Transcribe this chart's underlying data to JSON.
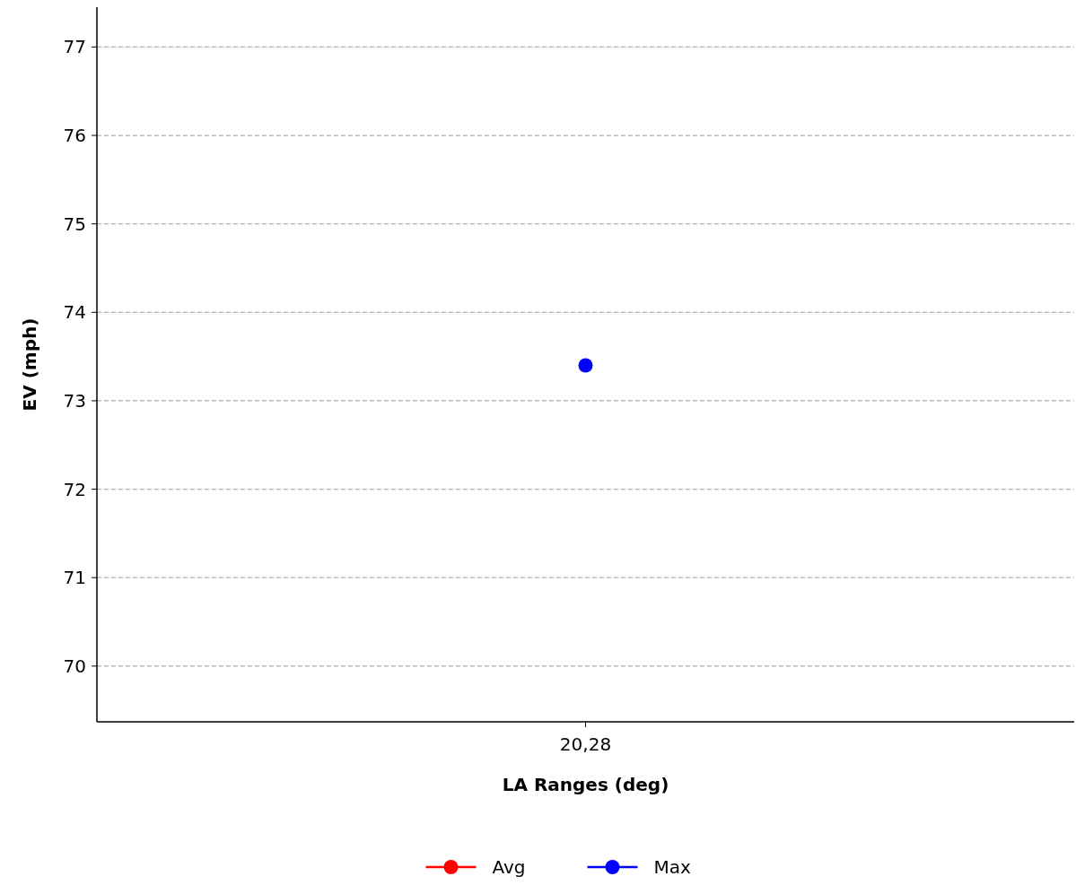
{
  "chart_data": {
    "type": "line",
    "xlabel": "LA Ranges (deg)",
    "ylabel": "EV (mph)",
    "categories": [
      "20,28"
    ],
    "series": [
      {
        "name": "Avg",
        "color": "#ff0000",
        "values": [
          null
        ]
      },
      {
        "name": "Max",
        "color": "#0000ff",
        "values": [
          73.4
        ]
      }
    ],
    "ylim": [
      69.37,
      77.45
    ],
    "yticks": [
      70,
      71,
      72,
      73,
      74,
      75,
      76,
      77
    ],
    "grid": "y",
    "legend": "bottom",
    "marker": "circle",
    "line_style": "solid"
  }
}
